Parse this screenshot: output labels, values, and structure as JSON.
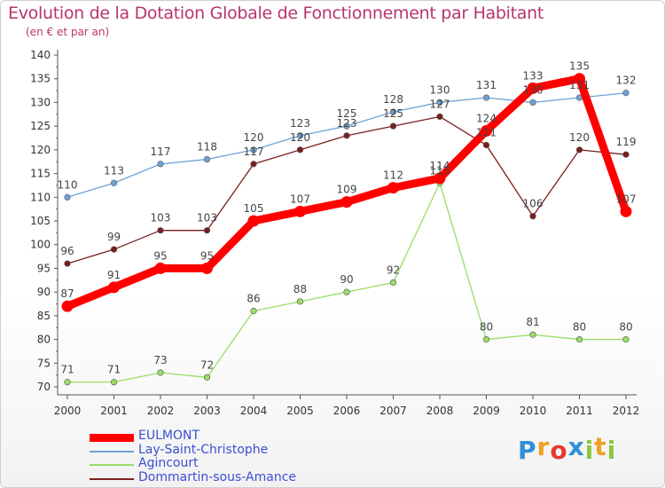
{
  "chart_data": {
    "type": "line",
    "title": "Evolution de la Dotation Globale de Fonctionnement par Habitant",
    "subtitle": "(en € et par an)",
    "xlabel": "",
    "ylabel": "",
    "x": [
      "2000",
      "2001",
      "2002",
      "2003",
      "2004",
      "2005",
      "2006",
      "2007",
      "2008",
      "2009",
      "2010",
      "2011",
      "2012"
    ],
    "ylim": [
      70,
      140
    ],
    "yticks": [
      "70",
      "75",
      "80",
      "85",
      "90",
      "95",
      "100",
      "105",
      "110",
      "115",
      "120",
      "125",
      "130",
      "135",
      "140"
    ],
    "grid": false,
    "legend_position": "bottom-left",
    "series": [
      {
        "name": "Dommartin-sous-Amance",
        "color": "#7a1f1f",
        "values": [
          96,
          99,
          103,
          103,
          117,
          120,
          123,
          125,
          127,
          121,
          106,
          120,
          119
        ]
      },
      {
        "name": "Agincourt",
        "color": "#99dd66",
        "values": [
          71,
          71,
          73,
          72,
          86,
          88,
          90,
          92,
          113,
          80,
          81,
          80,
          80
        ]
      },
      {
        "name": "Lay-Saint-Christophe",
        "color": "#6fa3d6",
        "values": [
          110,
          113,
          117,
          118,
          120,
          123,
          125,
          128,
          130,
          131,
          130,
          131,
          132
        ]
      },
      {
        "name": "EULMONT",
        "color": "#ff0000",
        "values": [
          87,
          91,
          95,
          95,
          105,
          107,
          109,
          112,
          114,
          124,
          133,
          135,
          107
        ]
      }
    ],
    "legend_order": [
      "EULMONT",
      "Lay-Saint-Christophe",
      "Agincourt",
      "Dommartin-sous-Amance"
    ]
  },
  "logo": {
    "letters": [
      "P",
      "r",
      "o",
      "x",
      "i",
      "t",
      "i"
    ],
    "colors": [
      "#2f8fd6",
      "#f0a020",
      "#e53b2c",
      "#2f8fd6",
      "#8cc63f",
      "#f0a020",
      "#8cc63f"
    ]
  }
}
